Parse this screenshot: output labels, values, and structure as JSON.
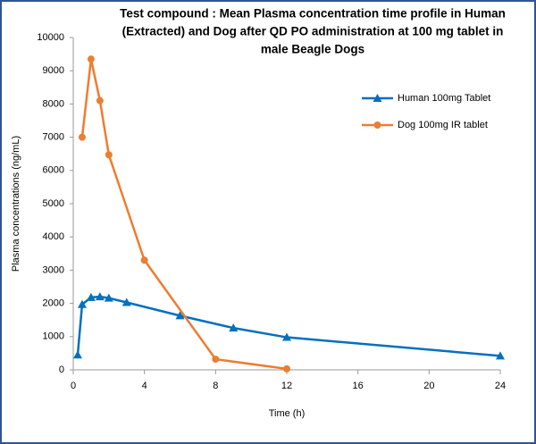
{
  "chart_data": {
    "type": "line",
    "title": [
      "Test compound : Mean Plasma concentration time profile in Human",
      "(Extracted) and Dog after QD PO administration at 100 mg tablet in",
      "male Beagle Dogs"
    ],
    "x_label": "Time (h)",
    "y_label": "Plasma concentrations (ng/mL)",
    "xlim": [
      0,
      24
    ],
    "xticks": [
      0,
      4,
      8,
      12,
      16,
      20,
      24
    ],
    "ylim": [
      0,
      10000
    ],
    "yticks": [
      0,
      1000,
      2000,
      3000,
      4000,
      5000,
      6000,
      7000,
      8000,
      9000,
      10000
    ],
    "grid": false,
    "legend": "upper right",
    "series": [
      {
        "name": "Human 100mg Tablet",
        "color": "#0070c0",
        "marker": "triangle",
        "x": [
          0.25,
          0.5,
          1,
          1.5,
          2,
          3,
          6,
          9,
          12,
          24
        ],
        "values": [
          450,
          1970,
          2180,
          2200,
          2160,
          2030,
          1630,
          1260,
          980,
          420
        ]
      },
      {
        "name": "Dog 100mg IR tablet",
        "color": "#ed7d31",
        "marker": "circle",
        "x": [
          0.5,
          1,
          1.5,
          2,
          4,
          8,
          12
        ],
        "values": [
          7000,
          9350,
          8100,
          6470,
          3300,
          320,
          30
        ]
      }
    ]
  }
}
